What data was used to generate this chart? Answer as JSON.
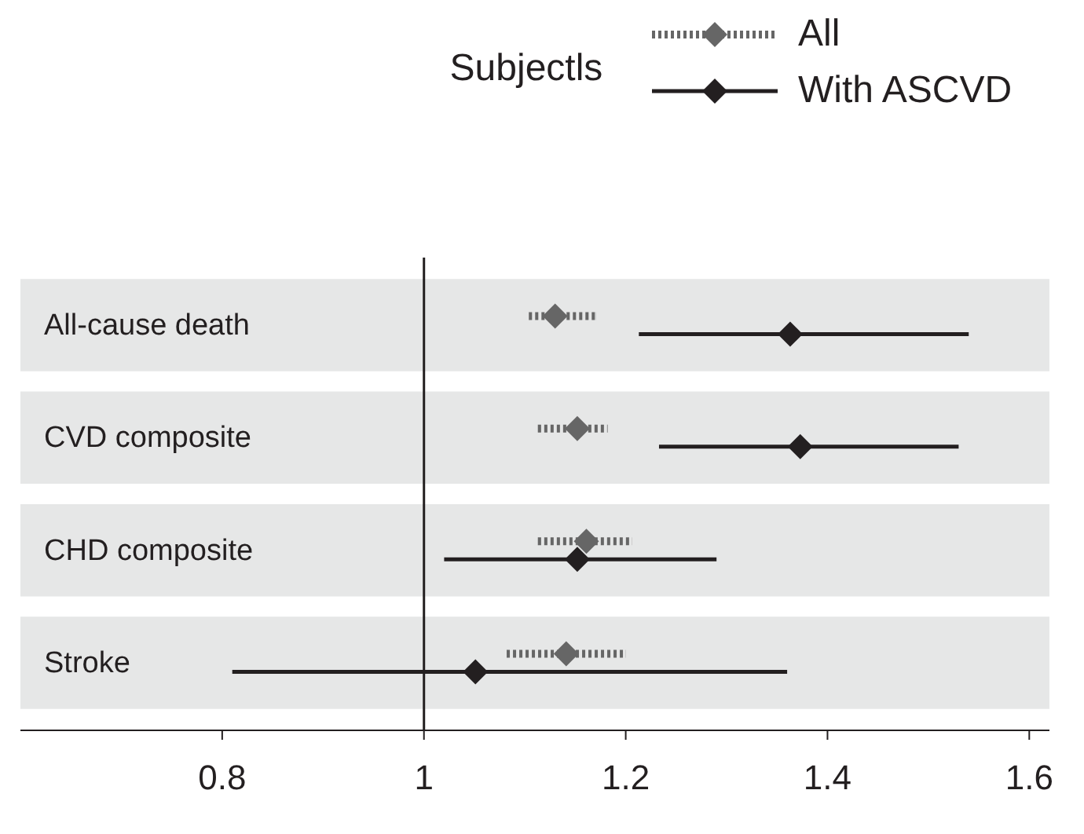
{
  "chart_data": {
    "type": "scatter",
    "orientation": "horizontal",
    "title": "Subjectls",
    "categories": [
      "All-cause death",
      "CVD composite",
      "CHD composite",
      "Stroke"
    ],
    "series": [
      {
        "name": "All",
        "color": "#666666",
        "line_style": "dotted",
        "values": [
          1.13,
          1.152,
          1.161,
          1.141
        ],
        "errors": [
          [
            1.104,
            1.17
          ],
          [
            1.113,
            1.182
          ],
          [
            1.113,
            1.206
          ],
          [
            1.082,
            1.2
          ]
        ]
      },
      {
        "name": "With ASCVD",
        "color": "#231f20",
        "line_style": "solid",
        "values": [
          1.363,
          1.373,
          1.152,
          1.051
        ],
        "errors": [
          [
            1.213,
            1.54
          ],
          [
            1.233,
            1.53
          ],
          [
            1.02,
            1.29
          ],
          [
            0.81,
            1.36
          ]
        ]
      }
    ],
    "marker": "diamond",
    "xlim": [
      0.6,
      1.62
    ],
    "xticks": [
      0.8,
      1,
      1.2,
      1.4,
      1.6
    ],
    "ref_lines": [
      {
        "axis": "x",
        "value": 1,
        "color": "#231f20"
      }
    ],
    "bands": [
      {
        "axis": "y",
        "from": "All-cause death",
        "to": "All-cause death",
        "color": "#e6e7e7"
      },
      {
        "axis": "y",
        "from": "CVD composite",
        "to": "CVD composite",
        "color": "#e6e7e7"
      },
      {
        "axis": "y",
        "from": "CHD composite",
        "to": "CHD composite",
        "color": "#e6e7e7"
      },
      {
        "axis": "y",
        "from": "Stroke",
        "to": "Stroke",
        "color": "#e6e7e7"
      }
    ],
    "legend": "top right",
    "grid": false
  }
}
